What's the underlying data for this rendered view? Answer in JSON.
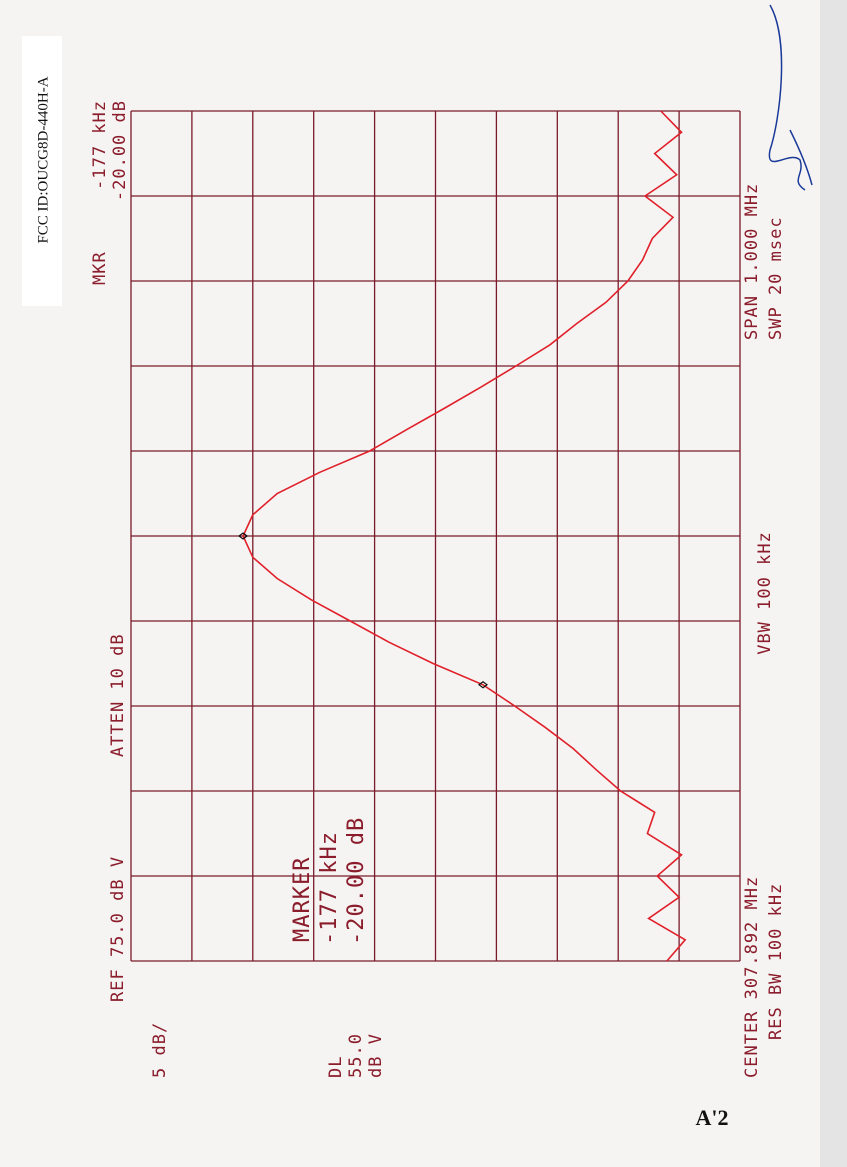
{
  "fcc_id": "FCC ID:OUCG8D-440H-A",
  "page_label": "A'2",
  "header": {
    "mkr_label": "MKR",
    "mkr_freq": "-177 kHz",
    "mkr_amp": "-20.00 dB",
    "ref": "REF 75.0 dB V",
    "atten": "ATTEN 10 dB",
    "scale": "5 dB/",
    "dl_label": "DL",
    "dl_value": "55.0",
    "dl_unit": "dB V"
  },
  "marker_box": {
    "title": "MARKER",
    "freq": "-177 kHz",
    "amp": "-20.00 dB"
  },
  "footer": {
    "center": "CENTER 307.892 MHz",
    "res_bw": "RES BW 100 kHz",
    "vbw": "VBW 100 kHz",
    "span": "SPAN 1.000 MHz",
    "swp": "SWP 20 msec"
  },
  "chart_data": {
    "type": "line",
    "color": "#e0202a",
    "x": [
      -500,
      -475,
      -450,
      -425,
      -400,
      -375,
      -350,
      -325,
      -300,
      -275,
      -250,
      -225,
      -200,
      -175,
      -150,
      -125,
      -100,
      -75,
      -50,
      -25,
      0,
      25,
      50,
      75,
      100,
      125,
      150,
      175,
      200,
      225,
      250,
      275,
      300,
      325,
      350,
      375,
      400,
      425,
      450,
      475,
      500
    ],
    "values": [
      31.0,
      29.5,
      32.5,
      30.0,
      31.8,
      29.8,
      32.6,
      32.0,
      34.8,
      36.8,
      38.7,
      41.0,
      43.5,
      46.1,
      50.2,
      53.8,
      57.0,
      60.2,
      63.0,
      65.0,
      65.8,
      65.0,
      63.0,
      59.5,
      55.4,
      52.4,
      49.3,
      46.3,
      43.4,
      40.6,
      38.4,
      36.0,
      34.2,
      33.0,
      32.2,
      30.5,
      32.8,
      30.2,
      32.0,
      29.8,
      31.5
    ],
    "xlim": [
      -500,
      500
    ],
    "ylim": [
      25,
      75
    ]
  }
}
